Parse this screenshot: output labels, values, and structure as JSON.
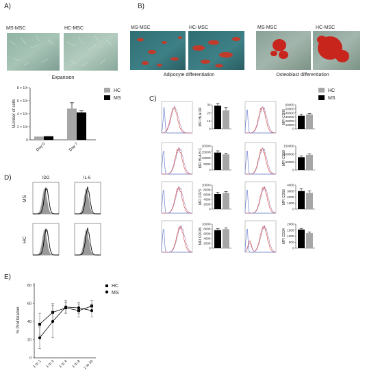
{
  "panels": {
    "A": {
      "letter": "A)",
      "micro_labels": [
        "MS-MSC",
        "HC-MSC"
      ],
      "caption": "Expansion"
    },
    "B": {
      "letter": "B)",
      "adipo_labels": [
        "MS-MSC",
        "HC-MSC"
      ],
      "adipo_caption": "Adipocyte differentiation",
      "osteo_labels": [
        "MS-MSC",
        "HC-MSC"
      ],
      "osteo_caption": "Osteoblast differentiation"
    },
    "C": {
      "letter": "C)"
    },
    "D": {
      "letter": "D)",
      "col_labels": [
        "IDO",
        "IL-6"
      ],
      "row_labels": [
        "MS",
        "HC"
      ]
    },
    "E": {
      "letter": "E)"
    }
  },
  "colors": {
    "HC": "#a6a6a6",
    "MS": "#000000",
    "flow_red": "#d9534f",
    "flow_blue": "#6a7fd0"
  },
  "chart_data": [
    {
      "id": "expansion",
      "type": "bar",
      "categories": [
        "Day 0",
        "Day 7"
      ],
      "series": [
        {
          "name": "HC",
          "values": [
            500000,
            4800000
          ],
          "errors": [
            0,
            900000
          ]
        },
        {
          "name": "MS",
          "values": [
            550000,
            4200000
          ],
          "errors": [
            0,
            250000
          ]
        }
      ],
      "ylabel": "NUmber of cells",
      "ylim": [
        0,
        8000000
      ],
      "ytick_labels": [
        "0",
        "2 × 10⁶",
        "4 × 10⁶",
        "6 × 10⁶",
        "8 × 10⁶"
      ],
      "legend": [
        "HC",
        "MS"
      ],
      "legend_position": "top-right"
    },
    {
      "id": "mfi",
      "type": "bar",
      "legend": [
        "HC",
        "MS"
      ],
      "legend_position": "top-right",
      "subplots": [
        {
          "ylabel": "MFI HLA DR",
          "yticks": [
            "0",
            "10",
            "20",
            "30"
          ],
          "ymax": 30,
          "MS": 29,
          "HC": 23,
          "MS_err": 3,
          "HC_err": 4
        },
        {
          "ylabel": "MFI CD90",
          "yticks": [
            "0",
            "10000",
            "20000",
            "30000",
            "40000",
            "50000",
            "60000"
          ],
          "ymax": 60000,
          "MS": 33000,
          "HC": 36000,
          "MS_err": 4000,
          "HC_err": 2500
        },
        {
          "ylabel": "MFI HLA B C",
          "yticks": [
            "0",
            "5000",
            "10000",
            "15000",
            "20000"
          ],
          "ymax": 20000,
          "MS": 14500,
          "HC": 13000,
          "MS_err": 1500,
          "HC_err": 1000
        },
        {
          "ylabel": "MFI CD59",
          "yticks": [
            "0",
            "50000",
            "100000",
            "150000"
          ],
          "ymax": 150000,
          "MS": 80000,
          "HC": 95000,
          "MS_err": 8000,
          "HC_err": 5000
        },
        {
          "ylabel": "MFI CD73",
          "yticks": [
            "0",
            "2000",
            "4000",
            "6000",
            "8000",
            "10000"
          ],
          "ymax": 10000,
          "MS": 6300,
          "HC": 6700,
          "MS_err": 700,
          "HC_err": 600
        },
        {
          "ylabel": "MFI CD55",
          "yticks": [
            "0",
            "1000",
            "2000",
            "3000",
            "4000"
          ],
          "ymax": 4000,
          "MS": 3000,
          "HC": 2700,
          "MS_err": 400,
          "HC_err": 300
        },
        {
          "ylabel": "MFI CD105",
          "yticks": [
            "0",
            "2000",
            "4000",
            "6000",
            "8000",
            "10000"
          ],
          "ymax": 10000,
          "MS": 7500,
          "HC": 7900,
          "MS_err": 600,
          "HC_err": 500
        },
        {
          "ylabel": "MFI CD34",
          "yticks": [
            "0",
            "500",
            "1000",
            "1500",
            "2000"
          ],
          "ymax": 2000,
          "MS": 1550,
          "HC": 1250,
          "MS_err": 100,
          "HC_err": 100
        }
      ]
    },
    {
      "id": "proliferation",
      "type": "line",
      "categories": [
        "1 to 1",
        "1 to 2",
        "1 to 4",
        "1 to 8",
        "1 to 10"
      ],
      "series": [
        {
          "name": "HC",
          "values": [
            37,
            50,
            55,
            52,
            57
          ],
          "errors": [
            12,
            10,
            6,
            7,
            6
          ]
        },
        {
          "name": "MS",
          "values": [
            22,
            40,
            56,
            55,
            52
          ],
          "errors": [
            12,
            18,
            7,
            6,
            7
          ]
        }
      ],
      "ylabel": "% Proliferation",
      "ylim": [
        0,
        80
      ],
      "yticks": [
        "0",
        "20",
        "40",
        "60",
        "80"
      ],
      "legend": [
        "HC",
        "MS"
      ],
      "legend_position": "top-right"
    }
  ]
}
